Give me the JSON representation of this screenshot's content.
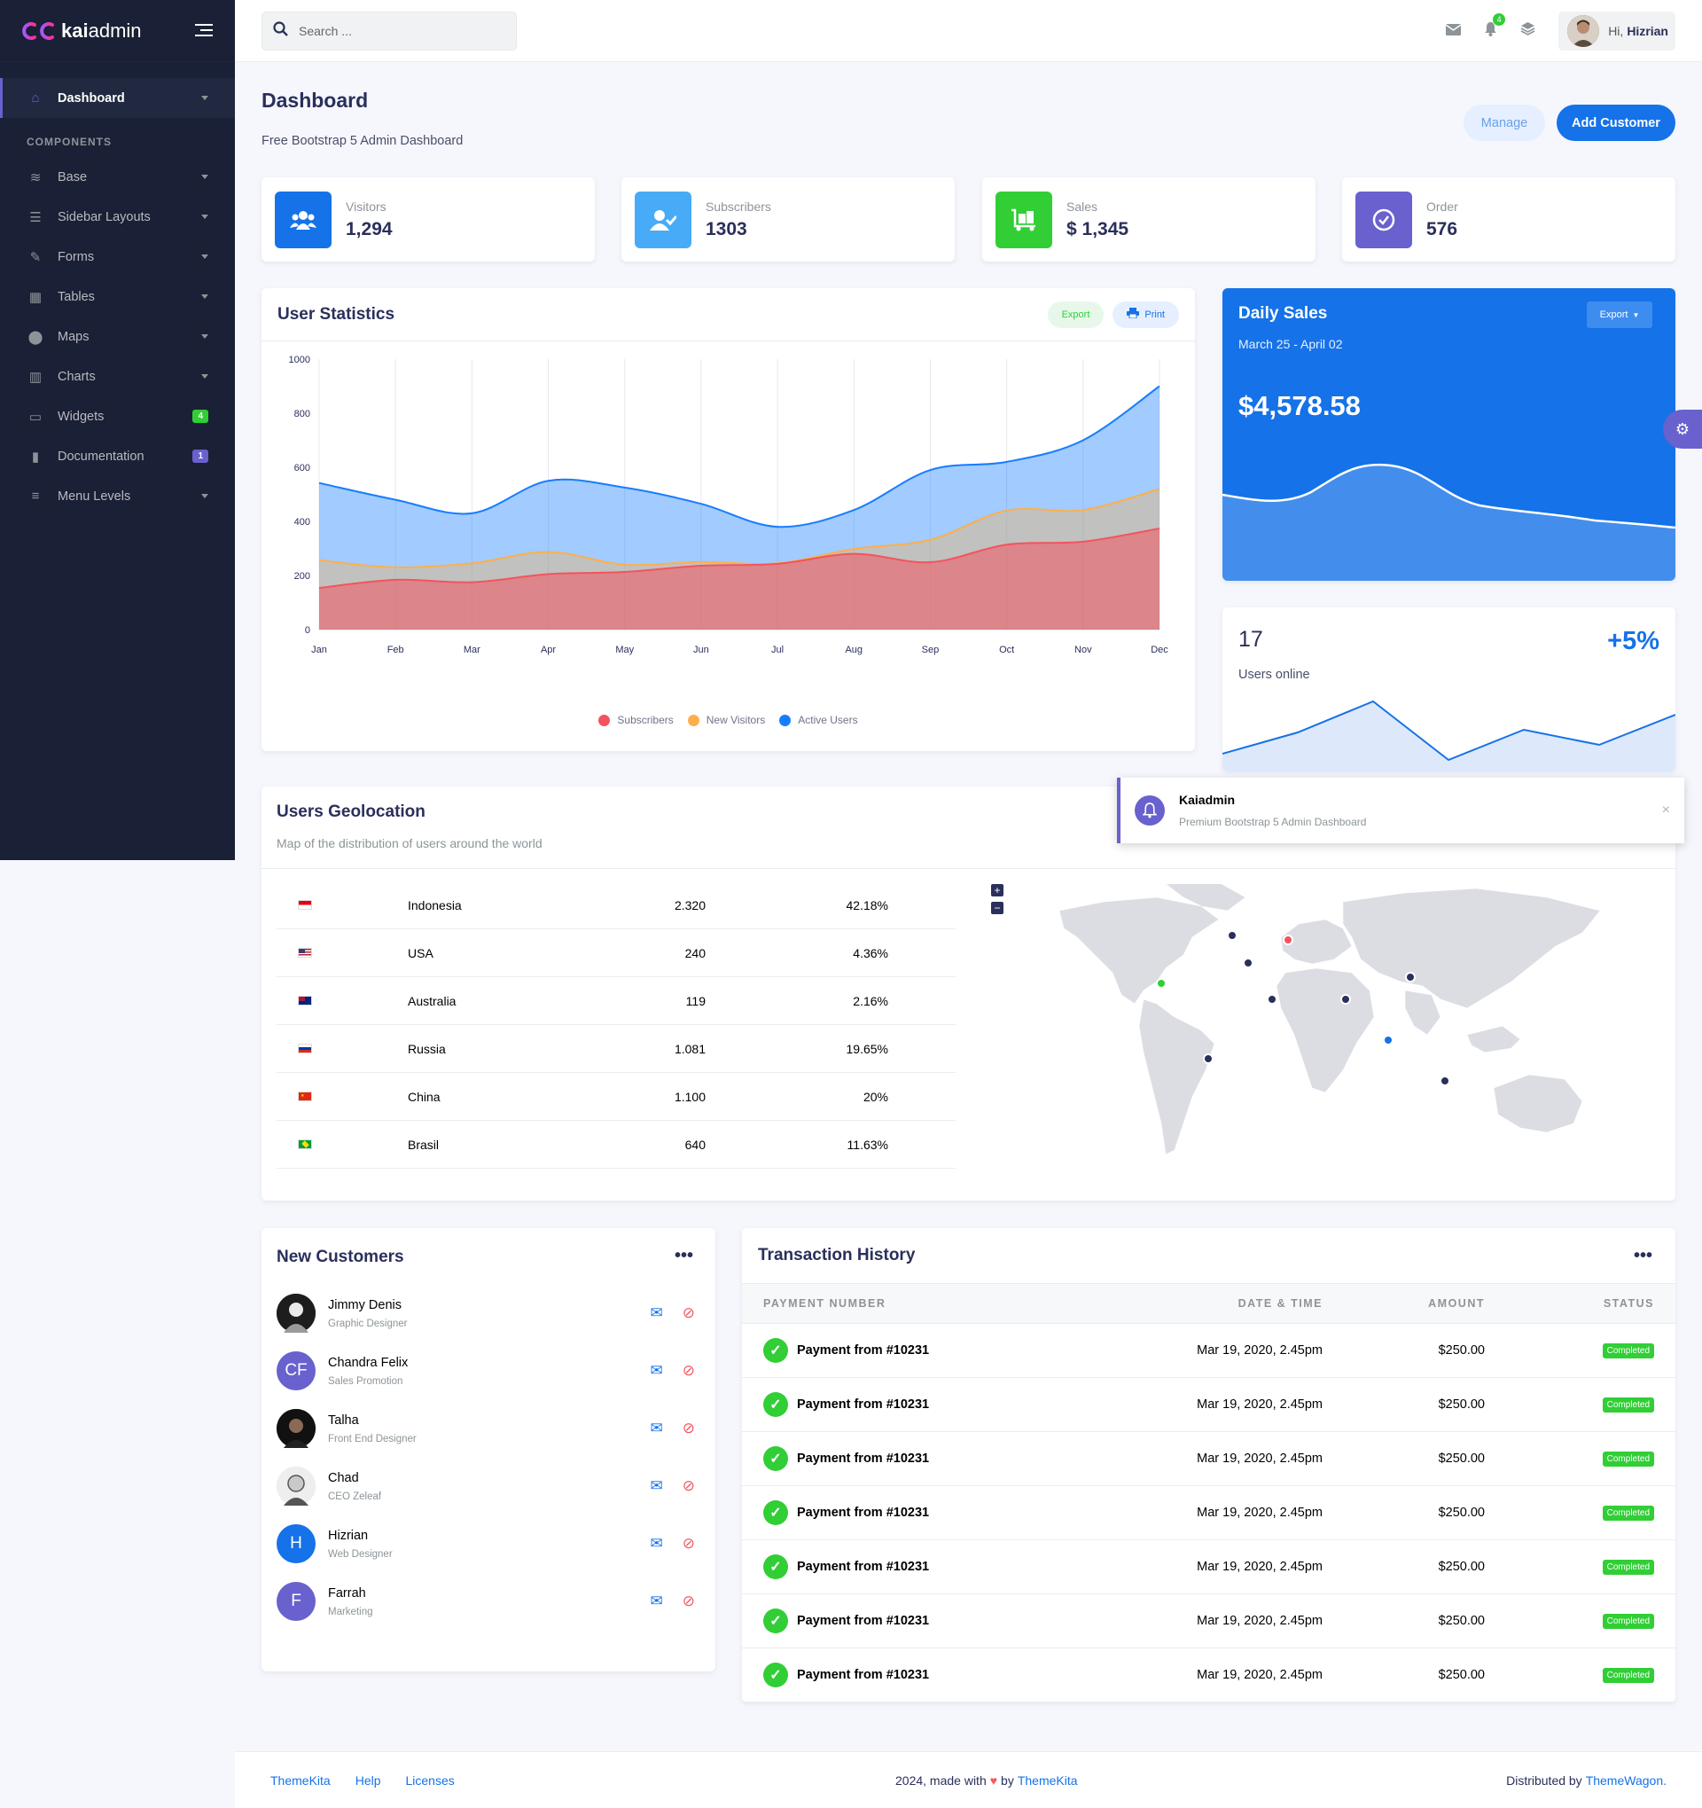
{
  "brand": {
    "name_bold": "kai",
    "name_light": "admin"
  },
  "sidebar": {
    "active": {
      "label": "Dashboard"
    },
    "section_label": "COMPONENTS",
    "items": [
      {
        "label": "Base",
        "icon": "layers-icon"
      },
      {
        "label": "Sidebar Layouts",
        "icon": "th-list-icon"
      },
      {
        "label": "Forms",
        "icon": "pen-square-icon"
      },
      {
        "label": "Tables",
        "icon": "table-icon"
      },
      {
        "label": "Maps",
        "icon": "map-marker-icon"
      },
      {
        "label": "Charts",
        "icon": "chart-bar-icon"
      },
      {
        "label": "Widgets",
        "icon": "desktop-icon",
        "badge": "4"
      },
      {
        "label": "Documentation",
        "icon": "file-icon",
        "badge": "1"
      },
      {
        "label": "Menu Levels",
        "icon": "bars-icon"
      }
    ]
  },
  "topbar": {
    "search_placeholder": "Search ...",
    "notif_count": "4",
    "greeting": "Hi,",
    "user_name": "Hizrian"
  },
  "page": {
    "title": "Dashboard",
    "subtitle": "Free Bootstrap 5 Admin Dashboard",
    "manage_label": "Manage",
    "add_customer_label": "Add Customer"
  },
  "stats": [
    {
      "label": "Visitors",
      "value": "1,294",
      "color": "#1572e8"
    },
    {
      "label": "Subscribers",
      "value": "1303",
      "color": "#48abf7"
    },
    {
      "label": "Sales",
      "value": "$ 1,345",
      "color": "#31ce36"
    },
    {
      "label": "Order",
      "value": "576",
      "color": "#6861ce"
    }
  ],
  "user_stats": {
    "title": "User Statistics",
    "export_label": "Export",
    "print_label": "Print"
  },
  "chart_data": {
    "type": "area",
    "categories": [
      "Jan",
      "Feb",
      "Mar",
      "Apr",
      "May",
      "Jun",
      "Jul",
      "Aug",
      "Sep",
      "Oct",
      "Nov",
      "Dec"
    ],
    "ylim": [
      0,
      1000
    ],
    "yticks": [
      "0",
      "200",
      "400",
      "600",
      "800",
      "1000"
    ],
    "series": [
      {
        "name": "Subscribers",
        "color": "#f3545d",
        "values": [
          154,
          184,
          175,
          205,
          213,
          236,
          243,
          280,
          249,
          314,
          325,
          374
        ]
      },
      {
        "name": "New Visitors",
        "color": "#fdaf4b",
        "values": [
          256,
          230,
          245,
          287,
          240,
          250,
          245,
          298,
          332,
          440,
          442,
          520
        ]
      },
      {
        "name": "Active Users",
        "color": "#177dff",
        "values": [
          542,
          480,
          430,
          550,
          525,
          465,
          380,
          442,
          590,
          620,
          700,
          900
        ]
      }
    ]
  },
  "daily_sales": {
    "title": "Daily Sales",
    "date_range": "March 25 - April 02",
    "amount": "$4,578.58",
    "export_label": "Export"
  },
  "users_online": {
    "count": "17",
    "label": "Users online",
    "change": "+5%"
  },
  "geo": {
    "title": "Users Geolocation",
    "subtitle": "Map of the distribution of users around the world",
    "rows": [
      {
        "country": "Indonesia",
        "value": "2.320",
        "pct": "42.18%"
      },
      {
        "country": "USA",
        "value": "240",
        "pct": "4.36%"
      },
      {
        "country": "Australia",
        "value": "119",
        "pct": "2.16%"
      },
      {
        "country": "Russia",
        "value": "1.081",
        "pct": "19.65%"
      },
      {
        "country": "China",
        "value": "1.100",
        "pct": "20%"
      },
      {
        "country": "Brasil",
        "value": "640",
        "pct": "11.63%"
      }
    ],
    "zoom_in": "+",
    "zoom_out": "−"
  },
  "customers": {
    "title": "New Customers",
    "list": [
      {
        "name": "Jimmy Denis",
        "role": "Graphic Designer",
        "initials": "",
        "color": "#222"
      },
      {
        "name": "Chandra Felix",
        "role": "Sales Promotion",
        "initials": "CF",
        "color": "#6861ce"
      },
      {
        "name": "Talha",
        "role": "Front End Designer",
        "initials": "",
        "color": "#1d1d1d"
      },
      {
        "name": "Chad",
        "role": "CEO Zeleaf",
        "initials": "",
        "color": "#d9d9d9"
      },
      {
        "name": "Hizrian",
        "role": "Web Designer",
        "initials": "H",
        "color": "#1572e8"
      },
      {
        "name": "Farrah",
        "role": "Marketing",
        "initials": "F",
        "color": "#6861ce"
      }
    ]
  },
  "transactions": {
    "title": "Transaction History",
    "headers": [
      "PAYMENT NUMBER",
      "DATE & TIME",
      "AMOUNT",
      "STATUS"
    ],
    "rows": [
      {
        "payment": "Payment from #10231",
        "date": "Mar 19, 2020, 2.45pm",
        "amount": "$250.00",
        "status": "Completed"
      },
      {
        "payment": "Payment from #10231",
        "date": "Mar 19, 2020, 2.45pm",
        "amount": "$250.00",
        "status": "Completed"
      },
      {
        "payment": "Payment from #10231",
        "date": "Mar 19, 2020, 2.45pm",
        "amount": "$250.00",
        "status": "Completed"
      },
      {
        "payment": "Payment from #10231",
        "date": "Mar 19, 2020, 2.45pm",
        "amount": "$250.00",
        "status": "Completed"
      },
      {
        "payment": "Payment from #10231",
        "date": "Mar 19, 2020, 2.45pm",
        "amount": "$250.00",
        "status": "Completed"
      },
      {
        "payment": "Payment from #10231",
        "date": "Mar 19, 2020, 2.45pm",
        "amount": "$250.00",
        "status": "Completed"
      },
      {
        "payment": "Payment from #10231",
        "date": "Mar 19, 2020, 2.45pm",
        "amount": "$250.00",
        "status": "Completed"
      }
    ]
  },
  "toast": {
    "title": "Kaiadmin",
    "message": "Premium Bootstrap 5 Admin Dashboard"
  },
  "footer": {
    "links": [
      "ThemeKita",
      "Help",
      "Licenses"
    ],
    "made_prefix": "2024, made with",
    "made_by": "by",
    "made_link": "ThemeKita",
    "distributed_prefix": "Distributed by",
    "distributed_link": "ThemeWagon."
  }
}
